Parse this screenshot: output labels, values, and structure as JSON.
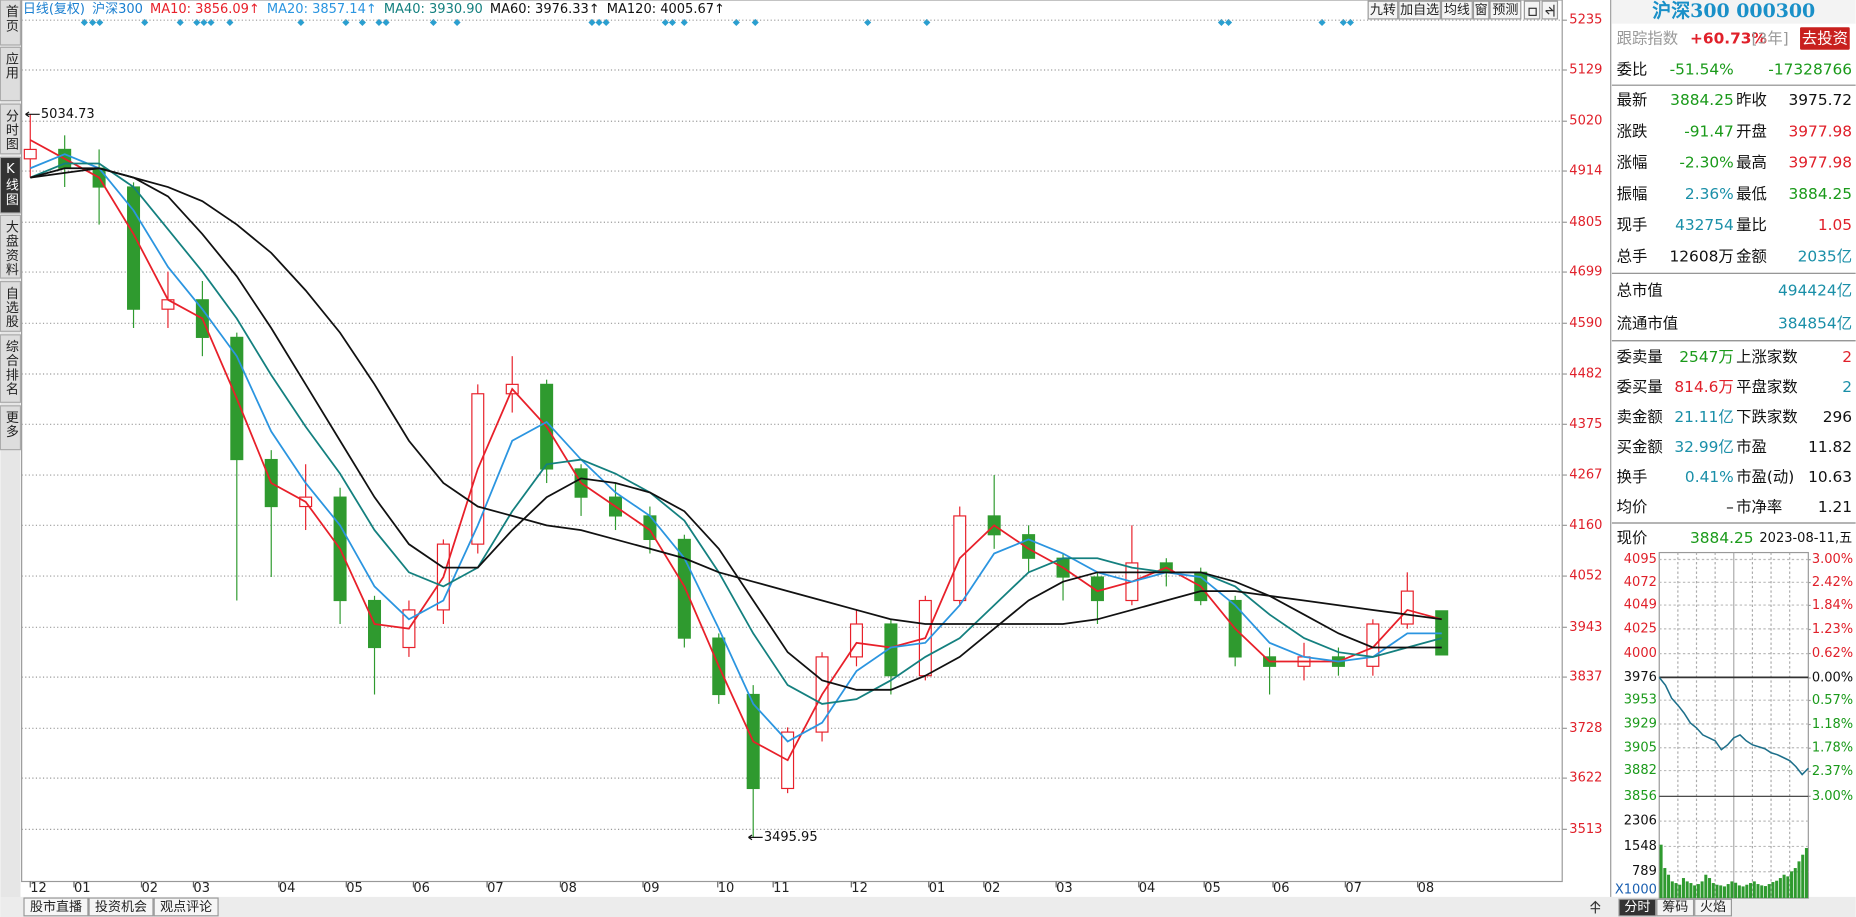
{
  "ui": {
    "sidebar": [
      "首页",
      "应用",
      "分时图",
      "K线图",
      "大盘资料",
      "自选股",
      "综合排名",
      "更多"
    ],
    "bottom_tabs": [
      "股市直播",
      "投资机会",
      "观点评论"
    ],
    "toolbar": [
      "九转",
      "加自选",
      "均线",
      "窗",
      "预测"
    ],
    "panel_tabs": [
      "分时",
      "筹码",
      "火焰"
    ]
  },
  "quote": {
    "title": "沪深300 000300",
    "tracking": {
      "label": "跟踪指数",
      "value": "+60.73%",
      "period": "[3年]",
      "button": "去投资"
    },
    "ratio": {
      "label": "委比",
      "pct": "-51.54%",
      "diff": "-17328766"
    },
    "grid1": [
      [
        "最新",
        "3884.25",
        "昨收",
        "3975.72"
      ],
      [
        "涨跌",
        "-91.47",
        "开盘",
        "3977.98"
      ],
      [
        "涨幅",
        "-2.30%",
        "最高",
        "3977.98"
      ],
      [
        "振幅",
        "2.36%",
        "最低",
        "3884.25"
      ],
      [
        "现手",
        "432754",
        "量比",
        "1.05"
      ],
      [
        "总手",
        "12608万",
        "金额",
        "2035亿"
      ]
    ],
    "market": [
      [
        "总市值",
        "494424亿"
      ],
      [
        "流通市值",
        "384854亿"
      ]
    ],
    "grid2": [
      [
        "委卖量",
        "2547万",
        "上涨家数",
        "2"
      ],
      [
        "委买量",
        "814.6万",
        "平盘家数",
        "2"
      ],
      [
        "卖金额",
        "21.11亿",
        "下跌家数",
        "296"
      ],
      [
        "买金额",
        "32.99亿",
        "市盈",
        "11.82"
      ],
      [
        "换手",
        "0.41%",
        "市盈(动)",
        "10.63"
      ],
      [
        "均价",
        "–",
        "市净率",
        "1.21"
      ]
    ]
  },
  "chart_data": [
    {
      "type": "candlestick",
      "period": "日线(复权)",
      "title": "沪深300",
      "up_color": "#e8202a",
      "down_color": "#2f9a2f",
      "open": [
        4940,
        4960,
        4920,
        4880,
        4620,
        4640,
        4560,
        4300,
        4200,
        4220,
        4000,
        3900,
        3980,
        4120,
        4440,
        4460,
        4280,
        4220,
        4180,
        4130,
        3920,
        3800,
        3600,
        3720,
        3880,
        3950,
        3840,
        4000,
        4180,
        4140,
        4090,
        4050,
        4000,
        4080,
        4060,
        4000,
        3880,
        3860,
        3880,
        3860,
        3950,
        3978
      ],
      "high": [
        5034.73,
        4990,
        4960,
        4890,
        4700,
        4680,
        4570,
        4320,
        4290,
        4240,
        4010,
        4000,
        4130,
        4460,
        4520,
        4470,
        4290,
        4250,
        4200,
        4140,
        3930,
        3820,
        3730,
        3890,
        3980,
        3960,
        4010,
        4200,
        4267,
        4160,
        4100,
        4060,
        4160,
        4090,
        4070,
        4010,
        3900,
        3910,
        3900,
        3960,
        4060,
        3978
      ],
      "low": [
        4900,
        4880,
        4800,
        4580,
        4580,
        4520,
        4000,
        4050,
        4150,
        3950,
        3800,
        3880,
        3950,
        4100,
        4400,
        4250,
        4180,
        4150,
        4100,
        3900,
        3780,
        3495.95,
        3590,
        3700,
        3860,
        3800,
        3830,
        3990,
        4110,
        4060,
        4000,
        3950,
        3990,
        4030,
        3990,
        3860,
        3800,
        3830,
        3840,
        3840,
        3940,
        3884.25
      ],
      "close": [
        4960,
        4920,
        4880,
        4620,
        4640,
        4560,
        4300,
        4200,
        4220,
        4000,
        3900,
        3980,
        4120,
        4440,
        4460,
        4280,
        4220,
        4180,
        4130,
        3920,
        3800,
        3600,
        3720,
        3880,
        3950,
        3840,
        4000,
        4180,
        4140,
        4090,
        4050,
        4000,
        4080,
        4060,
        4000,
        3880,
        3860,
        3880,
        3860,
        3950,
        4020,
        3884.25
      ],
      "series": [
        {
          "name": "MA10: 3856.09↑",
          "color": "#e8202a",
          "values": [
            4980,
            4940,
            4900,
            4780,
            4640,
            4600,
            4430,
            4250,
            4210,
            4110,
            3950,
            3940,
            4050,
            4280,
            4450,
            4370,
            4250,
            4200,
            4150,
            4030,
            3860,
            3700,
            3660,
            3800,
            3910,
            3900,
            3920,
            4090,
            4160,
            4110,
            4070,
            4020,
            4040,
            4070,
            4030,
            3940,
            3870,
            3870,
            3870,
            3900,
            3980,
            3960
          ]
        },
        {
          "name": "MA20: 3857.14↑",
          "color": "#2b95e0",
          "values": [
            4920,
            4950,
            4920,
            4830,
            4710,
            4620,
            4520,
            4360,
            4250,
            4160,
            4030,
            3960,
            4000,
            4160,
            4340,
            4380,
            4300,
            4230,
            4180,
            4090,
            3940,
            3780,
            3700,
            3740,
            3850,
            3900,
            3910,
            3990,
            4100,
            4130,
            4100,
            4060,
            4040,
            4060,
            4050,
            3990,
            3910,
            3880,
            3870,
            3880,
            3930,
            3930
          ]
        },
        {
          "name": "MA40: 3930.90",
          "color": "#14807f",
          "values": [
            4900,
            4930,
            4930,
            4880,
            4790,
            4700,
            4600,
            4480,
            4370,
            4270,
            4150,
            4060,
            4030,
            4070,
            4190,
            4290,
            4300,
            4270,
            4230,
            4170,
            4060,
            3930,
            3820,
            3780,
            3790,
            3830,
            3880,
            3920,
            3990,
            4060,
            4090,
            4090,
            4070,
            4060,
            4060,
            4030,
            3970,
            3920,
            3890,
            3880,
            3900,
            3920
          ]
        },
        {
          "name": "MA60: 3976.33↑",
          "color": "#111111",
          "values": [
            4900,
            4920,
            4920,
            4900,
            4860,
            4780,
            4690,
            4580,
            4460,
            4340,
            4220,
            4120,
            4070,
            4070,
            4150,
            4220,
            4260,
            4250,
            4230,
            4190,
            4110,
            4000,
            3890,
            3830,
            3810,
            3810,
            3840,
            3880,
            3940,
            4000,
            4040,
            4060,
            4060,
            4060,
            4060,
            4040,
            4010,
            3970,
            3930,
            3900,
            3900,
            3900
          ]
        },
        {
          "name": "MA120: 4005.67↑",
          "color": "#111111",
          "values": [
            4900,
            4910,
            4920,
            4900,
            4880,
            4850,
            4800,
            4740,
            4660,
            4570,
            4460,
            4340,
            4250,
            4200,
            4180,
            4160,
            4150,
            4130,
            4110,
            4090,
            4060,
            4040,
            4020,
            4000,
            3980,
            3960,
            3950,
            3950,
            3950,
            3950,
            3950,
            3960,
            3980,
            4000,
            4020,
            4020,
            4010,
            4000,
            3990,
            3980,
            3970,
            3960
          ]
        }
      ],
      "xlim": [
        -0.25,
        44.5
      ],
      "xticks": [
        {
          "value": 0,
          "label": "12"
        },
        {
          "value": 1.27,
          "label": "01"
        },
        {
          "value": 3.23,
          "label": "02"
        },
        {
          "value": 4.74,
          "label": "03"
        },
        {
          "value": 7.22,
          "label": "04"
        },
        {
          "value": 9.18,
          "label": "05"
        },
        {
          "value": 11.13,
          "label": "06"
        },
        {
          "value": 13.27,
          "label": "07"
        },
        {
          "value": 15.4,
          "label": "08"
        },
        {
          "value": 17.8,
          "label": "09"
        },
        {
          "value": 19.97,
          "label": "10"
        },
        {
          "value": 21.58,
          "label": "11"
        },
        {
          "value": 23.85,
          "label": "12"
        },
        {
          "value": 26.1,
          "label": "01"
        },
        {
          "value": 27.7,
          "label": "02"
        },
        {
          "value": 29.8,
          "label": "03"
        },
        {
          "value": 32.2,
          "label": "04"
        },
        {
          "value": 34.1,
          "label": "05"
        },
        {
          "value": 36.1,
          "label": "06"
        },
        {
          "value": 38.2,
          "label": "07"
        },
        {
          "value": 40.3,
          "label": "08"
        }
      ],
      "ylim": [
        3402,
        5278
      ],
      "yticks": [
        5235,
        5129,
        5020,
        4914,
        4805,
        4699,
        4590,
        4482,
        4375,
        4267,
        4160,
        4052,
        3943,
        3837,
        3728,
        3622,
        3513
      ],
      "grid": true
    },
    {
      "type": "line",
      "label": "现价",
      "price": "3884.25",
      "date": "2023-08-11,五",
      "color": "#1d6f8a",
      "values": [
        3976,
        3968,
        3955,
        3948,
        3940,
        3930,
        3925,
        3918,
        3915,
        3912,
        3903,
        3908,
        3915,
        3918,
        3912,
        3908,
        3906,
        3904,
        3900,
        3898,
        3895,
        3892,
        3886,
        3878,
        3884.25
      ],
      "ylim": [
        3856,
        4102
      ],
      "yticks": [
        4095,
        4072,
        4049,
        4025,
        4000,
        3976,
        3953,
        3929,
        3905,
        3882,
        3856
      ],
      "y2lim": [
        -3,
        3.18
      ],
      "y2ticks": [
        {
          "value": 3,
          "label": "3.00%"
        },
        {
          "value": 2.42,
          "label": "2.42%"
        },
        {
          "value": 1.84,
          "label": "1.84%"
        },
        {
          "value": 1.23,
          "label": "1.23%"
        },
        {
          "value": 0.62,
          "label": "0.62%"
        },
        {
          "value": 0,
          "label": "0.00%"
        },
        {
          "value": -0.57,
          "label": "0.57%"
        },
        {
          "value": -1.18,
          "label": "1.18%"
        },
        {
          "value": -1.78,
          "label": "1.78%"
        },
        {
          "value": -2.37,
          "label": "2.37%"
        },
        {
          "value": -3,
          "label": "3.00%"
        }
      ],
      "volume": {
        "unit": "X1000",
        "color": "#2f9a2f",
        "values": [
          1600,
          900,
          700,
          500,
          450,
          400,
          600,
          500,
          450,
          380,
          420,
          500,
          700,
          600,
          450,
          400,
          380,
          350,
          420,
          500,
          460,
          380,
          350,
          400,
          450,
          500,
          420,
          380,
          360,
          420,
          480,
          520,
          600,
          700,
          650,
          800,
          900,
          1100,
          1300,
          1500
        ],
        "ylim": [
          0,
          3050
        ],
        "yticks": [
          2306,
          1548,
          789
        ]
      }
    }
  ]
}
